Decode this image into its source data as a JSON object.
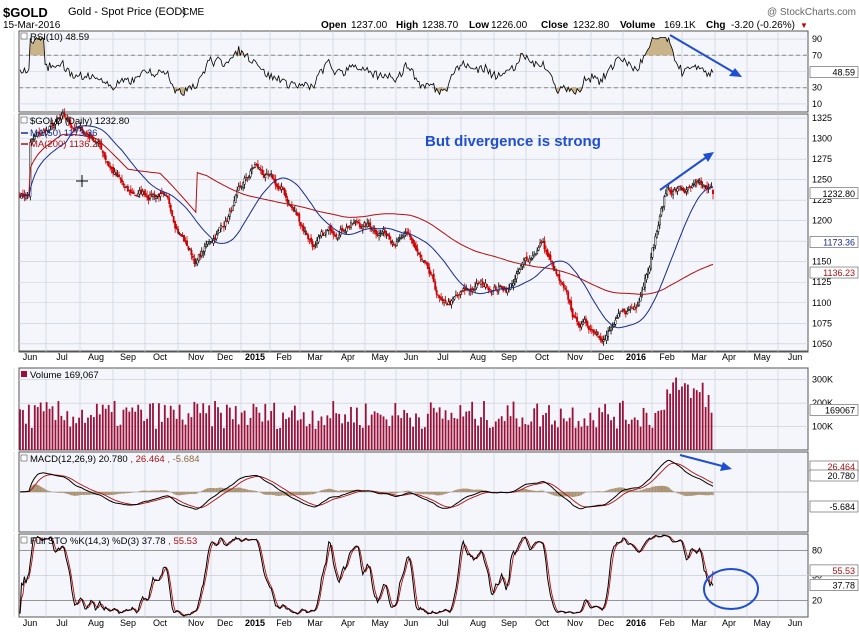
{
  "header": {
    "symbol": "$GOLD",
    "description": "Gold - Spot Price (EOD)",
    "exchange": "CME",
    "date": "15-Mar-2016",
    "watermark": "@ StockCharts.com",
    "open_label": "Open",
    "open": "1237.00",
    "high_label": "High",
    "high": "1238.70",
    "low_label": "Low",
    "low": "1226.00",
    "close_label": "Close",
    "close": "1232.80",
    "volume_label": "Volume",
    "volume": "169.1K",
    "chg_label": "Chg",
    "chg": "-3.20 (-0.26%)",
    "chg_marker": "▼"
  },
  "colors": {
    "panel_bg": "#f4f6fb",
    "grid": "#c8ccd6",
    "price_up": "#000000",
    "price_down": "#cc0000",
    "ma50": "#1a2a8c",
    "ma200": "#b01010",
    "volume_bar": "#9a1038",
    "rsi_fill": "#c9b48a",
    "macd_hist": "#a89070",
    "annotation_blue": "#1f4fd0"
  },
  "x_labels": [
    "Jun",
    "Jul",
    "Aug",
    "Sep",
    "Oct",
    "Nov",
    "Dec",
    "2015",
    "Feb",
    "Mar",
    "Apr",
    "May",
    "Jun",
    "Jul",
    "Aug",
    "Sep",
    "Oct",
    "Nov",
    "Dec",
    "2016",
    "Feb",
    "Mar",
    "Apr",
    "May",
    "Jun"
  ],
  "x_labels_bold": [
    "2015",
    "2016"
  ],
  "rsi": {
    "legend": "RSI(10) 48.59",
    "ticks": [
      "90",
      "70",
      "50",
      "30",
      "10"
    ],
    "last_label": "48.59"
  },
  "price": {
    "legend_main": "$GOLD (Daily) 1232.80",
    "legend_ma50": "MA(50) 1173.36",
    "legend_ma200": "MA(200) 1136.23",
    "ticks": [
      "1325",
      "1300",
      "1275",
      "1250",
      "1225",
      "1200",
      "1175",
      "1150",
      "1125",
      "1100",
      "1075",
      "1050"
    ],
    "labels": {
      "close": "1232.80",
      "ma50": "1173.36",
      "ma200": "1136.23"
    },
    "annotation": "But divergence is strong"
  },
  "volume": {
    "legend": "Volume 169,067",
    "ticks": [
      "300K",
      "200K",
      "100K"
    ],
    "last_label": "169067"
  },
  "macd": {
    "legend_prefix": "MACD(12,26,9)",
    "legend_macd": "20.780",
    "legend_signal": "26.464",
    "legend_hist": "-5.684",
    "labels": {
      "signal": "26.464",
      "macd": "20.780",
      "hist": "-5.684"
    }
  },
  "sto": {
    "legend_prefix": "Full STO %K(14,3) %D(3)",
    "legend_k": "37.78",
    "legend_d": "55.53",
    "ticks": [
      "80",
      "50",
      "20"
    ],
    "labels": {
      "d": "55.53",
      "k": "37.78"
    }
  },
  "chart_data": {
    "type": "line",
    "title": "$GOLD Gold - Spot Price (EOD) CME",
    "date_range": [
      "2014-06",
      "2016-03-15"
    ],
    "price_ylim": [
      1040,
      1330
    ],
    "price_anchors": {
      "x": [
        "2014-06",
        "2014-07",
        "2014-08",
        "2014-09",
        "2014-10",
        "2014-11",
        "2014-12",
        "2015-01",
        "2015-02",
        "2015-03",
        "2015-04",
        "2015-05",
        "2015-06",
        "2015-07",
        "2015-08",
        "2015-09",
        "2015-10",
        "2015-11",
        "2015-12",
        "2016-01",
        "2016-02",
        "2016-03-15"
      ],
      "close": [
        1295,
        1320,
        1300,
        1230,
        1235,
        1150,
        1200,
        1265,
        1230,
        1170,
        1200,
        1190,
        1175,
        1090,
        1120,
        1120,
        1175,
        1075,
        1065,
        1095,
        1240,
        1232.8
      ]
    },
    "series": [
      {
        "name": "MA(50)",
        "last": 1173.36
      },
      {
        "name": "MA(200)",
        "last": 1136.23
      }
    ],
    "rsi": {
      "ylim": [
        0,
        100
      ],
      "ticks": [
        90,
        70,
        50,
        30,
        10
      ],
      "last": 48.59
    },
    "volume": {
      "ticks": [
        "300K",
        "200K",
        "100K"
      ],
      "last": 169067
    },
    "macd": {
      "params": "12,26,9",
      "macd": 20.78,
      "signal": 26.464,
      "hist": -5.684
    },
    "stochastic": {
      "params": "%K(14,3) %D(3)",
      "k": 37.78,
      "d": 55.53,
      "ticks": [
        80,
        50,
        20
      ]
    },
    "annotations": [
      "But divergence is strong"
    ]
  }
}
